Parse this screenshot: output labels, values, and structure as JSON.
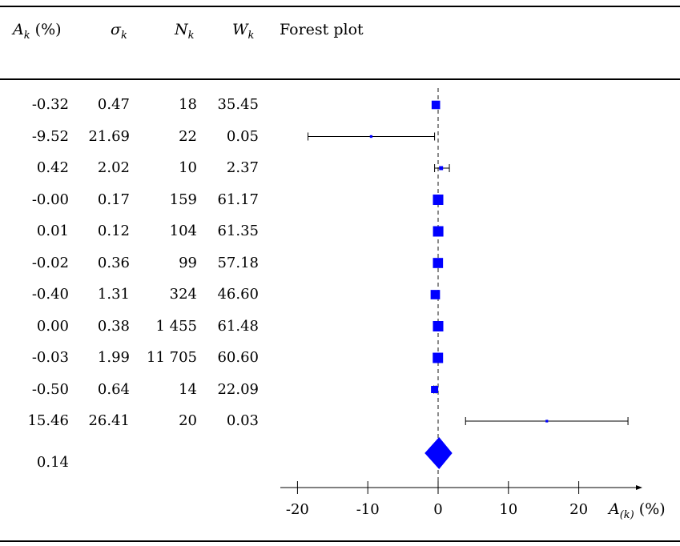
{
  "table": {
    "headers": {
      "A": {
        "sym": "A",
        "sub": "k",
        "unit": " (%)"
      },
      "sigma": {
        "sym": "σ",
        "sub": "k"
      },
      "N": {
        "sym": "N",
        "sub": "k"
      },
      "W": {
        "sym": "W",
        "sub": "k"
      },
      "plot": "Forest plot"
    },
    "rows": [
      {
        "A": "-0.32",
        "sigma": "0.47",
        "N": "18",
        "W": "35.45"
      },
      {
        "A": "-9.52",
        "sigma": "21.69",
        "N": "22",
        "W": "0.05"
      },
      {
        "A": "0.42",
        "sigma": "2.02",
        "N": "10",
        "W": "2.37"
      },
      {
        "A": "-0.00",
        "sigma": "0.17",
        "N": "159",
        "W": "61.17"
      },
      {
        "A": "0.01",
        "sigma": "0.12",
        "N": "104",
        "W": "61.35"
      },
      {
        "A": "-0.02",
        "sigma": "0.36",
        "N": "99",
        "W": "57.18"
      },
      {
        "A": "-0.40",
        "sigma": "1.31",
        "N": "324",
        "W": "46.60"
      },
      {
        "A": "0.00",
        "sigma": "0.38",
        "N": "1 455",
        "W": "61.48"
      },
      {
        "A": "-0.03",
        "sigma": "1.99",
        "N": "11 705",
        "W": "60.60"
      },
      {
        "A": "-0.50",
        "sigma": "0.64",
        "N": "14",
        "W": "22.09"
      },
      {
        "A": "15.46",
        "sigma": "26.41",
        "N": "20",
        "W": "0.03"
      }
    ],
    "pooled": {
      "A": "0.14"
    }
  },
  "chart_data": {
    "type": "forest",
    "xlabel": {
      "sym": "A",
      "sub": "(k)",
      "unit": " (%)"
    },
    "xlim": [
      -22,
      29
    ],
    "xticks": [
      -20,
      -10,
      0,
      10,
      20
    ],
    "xtick_labels": [
      "-20",
      "-10",
      "0",
      "10",
      "20"
    ],
    "reference_line": 0,
    "colors": {
      "marker": "#0000ff",
      "line": "#000000",
      "ref": "#666666"
    },
    "studies": [
      {
        "estimate": -0.32,
        "ci": [
          -0.5,
          0.0
        ],
        "weight": 35.45
      },
      {
        "estimate": -9.52,
        "ci": [
          -18.5,
          -0.5
        ],
        "weight": 0.05
      },
      {
        "estimate": 0.42,
        "ci": [
          -0.5,
          1.6
        ],
        "weight": 2.37
      },
      {
        "estimate": 0.0,
        "ci": [
          -0.2,
          0.2
        ],
        "weight": 61.17
      },
      {
        "estimate": 0.01,
        "ci": [
          -0.1,
          0.1
        ],
        "weight": 61.35
      },
      {
        "estimate": -0.02,
        "ci": [
          -0.3,
          0.3
        ],
        "weight": 57.18
      },
      {
        "estimate": -0.4,
        "ci": [
          -0.6,
          -0.2
        ],
        "weight": 46.6
      },
      {
        "estimate": 0.0,
        "ci": [
          -0.3,
          0.3
        ],
        "weight": 61.48
      },
      {
        "estimate": -0.03,
        "ci": [
          -0.2,
          0.2
        ],
        "weight": 60.6
      },
      {
        "estimate": -0.5,
        "ci": [
          -0.6,
          -0.3
        ],
        "weight": 22.09
      },
      {
        "estimate": 15.46,
        "ci": [
          3.9,
          27.0
        ],
        "weight": 0.03
      }
    ],
    "pooled": {
      "estimate": 0.14,
      "ci": [
        -1.0,
        1.1
      ]
    }
  }
}
